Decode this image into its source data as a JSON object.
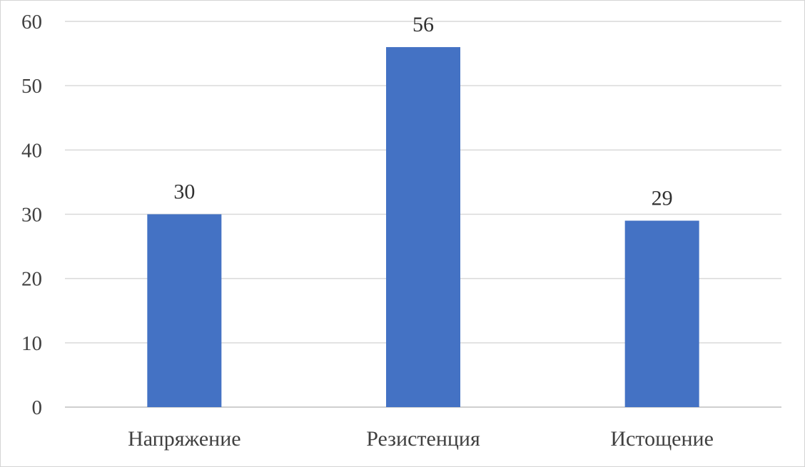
{
  "chart_data": {
    "type": "bar",
    "categories": [
      "Напряжение",
      "Резистенция",
      "Истощение"
    ],
    "values": [
      30,
      56,
      29
    ],
    "data_labels": [
      "30",
      "56",
      "29"
    ],
    "title": "",
    "xlabel": "",
    "ylabel": "",
    "ylim": [
      0,
      60
    ],
    "yticks": [
      0,
      10,
      20,
      30,
      40,
      50,
      60
    ],
    "grid": true,
    "legend": "none",
    "bar_color": "#4472c4"
  }
}
